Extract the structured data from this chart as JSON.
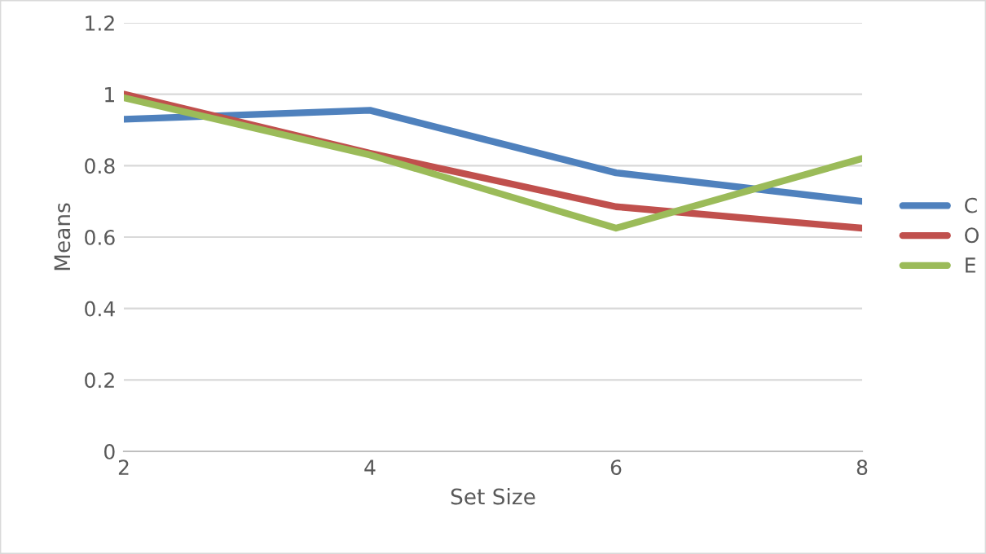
{
  "chart_data": {
    "type": "line",
    "xlabel": "Set Size",
    "ylabel": "Means",
    "x": [
      2,
      4,
      6,
      8
    ],
    "series": [
      {
        "name": "C",
        "color": "#4f81bd",
        "values": [
          0.93,
          0.955,
          0.78,
          0.7
        ]
      },
      {
        "name": "O",
        "color": "#c0504d",
        "values": [
          1.0,
          0.835,
          0.685,
          0.625
        ]
      },
      {
        "name": "E",
        "color": "#9bbb59",
        "values": [
          0.99,
          0.83,
          0.625,
          0.82
        ]
      }
    ],
    "xlim": [
      2,
      8
    ],
    "xticks": [
      2,
      4,
      6,
      8
    ],
    "ylim": [
      0,
      1.2
    ],
    "yticks": [
      0,
      0.2,
      0.4,
      0.6,
      0.8,
      1,
      1.2
    ],
    "grid": "y",
    "legend": "right",
    "marker": "none",
    "line_style": "solid"
  }
}
